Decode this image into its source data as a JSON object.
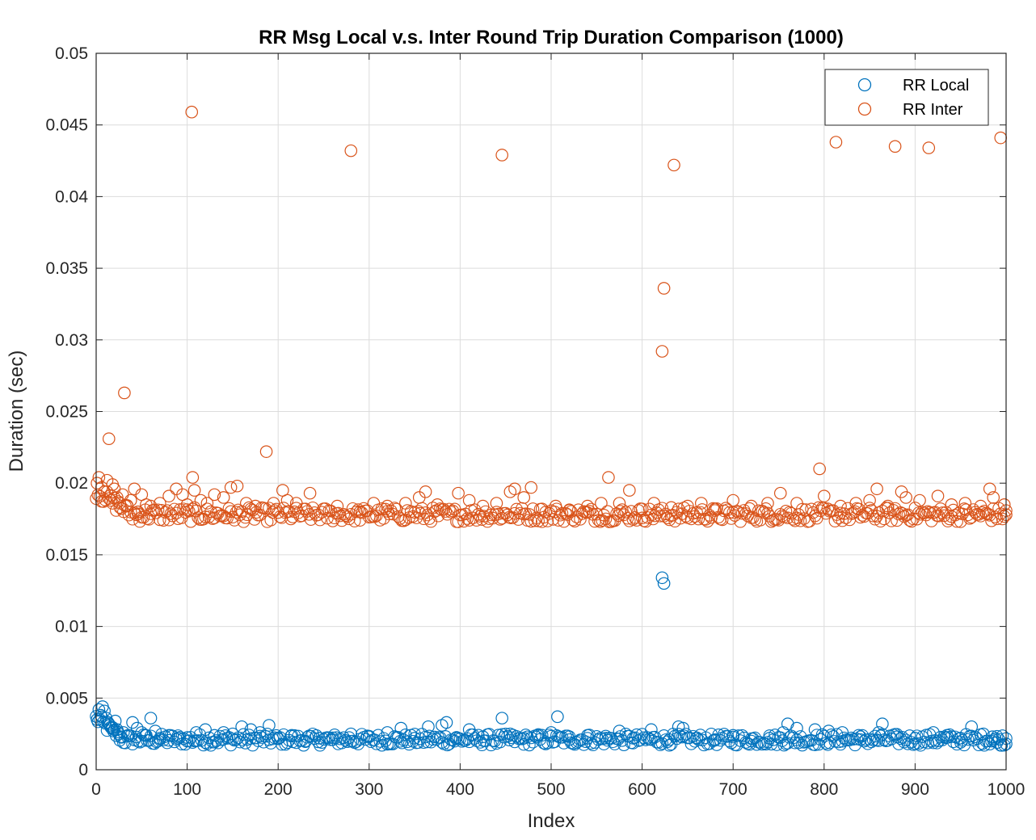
{
  "chart_data": {
    "type": "scatter",
    "title": "RR Msg Local v.s. Inter Round Trip Duration Comparison (1000)",
    "xlabel": "Index",
    "ylabel": "Duration (sec)",
    "xlim": [
      0,
      1000
    ],
    "ylim": [
      0,
      0.05
    ],
    "xticks": [
      "0",
      "100",
      "200",
      "300",
      "400",
      "500",
      "600",
      "700",
      "800",
      "900",
      "1000"
    ],
    "yticks": [
      "0",
      "0.005",
      "0.01",
      "0.015",
      "0.02",
      "0.025",
      "0.03",
      "0.035",
      "0.04",
      "0.045",
      "0.05"
    ],
    "grid": true,
    "legend_position": "top-right",
    "marker": "open-circle",
    "series": [
      {
        "name": "RR Local",
        "color": "#0072BD",
        "baseline": 0.0021,
        "points": [
          [
            1,
            0.0035
          ],
          [
            3,
            0.0042
          ],
          [
            5,
            0.0038
          ],
          [
            7,
            0.0044
          ],
          [
            9,
            0.0041
          ],
          [
            11,
            0.0036
          ],
          [
            13,
            0.0033
          ],
          [
            15,
            0.0031
          ],
          [
            17,
            0.0029
          ],
          [
            19,
            0.0027
          ],
          [
            21,
            0.0034
          ],
          [
            23,
            0.0028
          ],
          [
            25,
            0.0025
          ],
          [
            27,
            0.0023
          ],
          [
            30,
            0.0026
          ],
          [
            35,
            0.0024
          ],
          [
            40,
            0.0033
          ],
          [
            45,
            0.0029
          ],
          [
            50,
            0.0026
          ],
          [
            55,
            0.0024
          ],
          [
            60,
            0.0036
          ],
          [
            65,
            0.0027
          ],
          [
            70,
            0.0022
          ],
          [
            80,
            0.0024
          ],
          [
            90,
            0.0022
          ],
          [
            100,
            0.002
          ],
          [
            110,
            0.0026
          ],
          [
            120,
            0.0028
          ],
          [
            130,
            0.0024
          ],
          [
            140,
            0.0026
          ],
          [
            150,
            0.0025
          ],
          [
            160,
            0.003
          ],
          [
            170,
            0.0028
          ],
          [
            180,
            0.0026
          ],
          [
            190,
            0.0031
          ],
          [
            200,
            0.0022
          ],
          [
            215,
            0.0024
          ],
          [
            230,
            0.002
          ],
          [
            245,
            0.0022
          ],
          [
            260,
            0.0021
          ],
          [
            280,
            0.0025
          ],
          [
            300,
            0.0023
          ],
          [
            320,
            0.0026
          ],
          [
            335,
            0.0029
          ],
          [
            350,
            0.0022
          ],
          [
            365,
            0.003
          ],
          [
            380,
            0.0031
          ],
          [
            385,
            0.0033
          ],
          [
            395,
            0.0022
          ],
          [
            410,
            0.0028
          ],
          [
            425,
            0.0023
          ],
          [
            446,
            0.0036
          ],
          [
            455,
            0.0025
          ],
          [
            470,
            0.0022
          ],
          [
            485,
            0.0024
          ],
          [
            500,
            0.0026
          ],
          [
            507,
            0.0037
          ],
          [
            520,
            0.0021
          ],
          [
            540,
            0.0024
          ],
          [
            560,
            0.0022
          ],
          [
            575,
            0.0027
          ],
          [
            590,
            0.0022
          ],
          [
            610,
            0.0028
          ],
          [
            622,
            0.0134
          ],
          [
            624,
            0.013
          ],
          [
            630,
            0.0021
          ],
          [
            640,
            0.003
          ],
          [
            645,
            0.0029
          ],
          [
            660,
            0.0022
          ],
          [
            680,
            0.0021
          ],
          [
            700,
            0.0024
          ],
          [
            720,
            0.002
          ],
          [
            740,
            0.0022
          ],
          [
            755,
            0.0026
          ],
          [
            760,
            0.0032
          ],
          [
            770,
            0.0029
          ],
          [
            790,
            0.0028
          ],
          [
            805,
            0.0027
          ],
          [
            820,
            0.0026
          ],
          [
            840,
            0.0021
          ],
          [
            860,
            0.0026
          ],
          [
            864,
            0.0032
          ],
          [
            880,
            0.0023
          ],
          [
            900,
            0.0022
          ],
          [
            920,
            0.0026
          ],
          [
            935,
            0.0024
          ],
          [
            950,
            0.0022
          ],
          [
            962,
            0.003
          ],
          [
            975,
            0.0025
          ],
          [
            985,
            0.0023
          ],
          [
            990,
            0.0019
          ],
          [
            995,
            0.0017
          ],
          [
            1000,
            0.0018
          ]
        ]
      },
      {
        "name": "RR Inter",
        "color": "#D95319",
        "baseline": 0.0178,
        "points": [
          [
            1,
            0.02
          ],
          [
            3,
            0.0204
          ],
          [
            6,
            0.0197
          ],
          [
            9,
            0.0194
          ],
          [
            12,
            0.0202
          ],
          [
            14,
            0.0231
          ],
          [
            16,
            0.0188
          ],
          [
            18,
            0.0199
          ],
          [
            20,
            0.0196
          ],
          [
            23,
            0.019
          ],
          [
            26,
            0.0186
          ],
          [
            29,
            0.0192
          ],
          [
            31,
            0.0263
          ],
          [
            34,
            0.0184
          ],
          [
            38,
            0.0188
          ],
          [
            42,
            0.0196
          ],
          [
            46,
            0.018
          ],
          [
            50,
            0.0192
          ],
          [
            55,
            0.0185
          ],
          [
            60,
            0.0184
          ],
          [
            70,
            0.0186
          ],
          [
            80,
            0.0191
          ],
          [
            88,
            0.0196
          ],
          [
            95,
            0.0192
          ],
          [
            100,
            0.0185
          ],
          [
            105,
            0.0459
          ],
          [
            106,
            0.0204
          ],
          [
            108,
            0.0195
          ],
          [
            115,
            0.0188
          ],
          [
            122,
            0.0186
          ],
          [
            130,
            0.0192
          ],
          [
            140,
            0.019
          ],
          [
            148,
            0.0197
          ],
          [
            155,
            0.0198
          ],
          [
            165,
            0.0186
          ],
          [
            175,
            0.0184
          ],
          [
            187,
            0.0222
          ],
          [
            195,
            0.0186
          ],
          [
            205,
            0.0195
          ],
          [
            210,
            0.0188
          ],
          [
            220,
            0.0186
          ],
          [
            235,
            0.0193
          ],
          [
            250,
            0.0182
          ],
          [
            265,
            0.0184
          ],
          [
            280,
            0.0432
          ],
          [
            290,
            0.018
          ],
          [
            305,
            0.0186
          ],
          [
            320,
            0.0184
          ],
          [
            340,
            0.0186
          ],
          [
            355,
            0.019
          ],
          [
            362,
            0.0194
          ],
          [
            375,
            0.0185
          ],
          [
            398,
            0.0193
          ],
          [
            410,
            0.0188
          ],
          [
            425,
            0.0184
          ],
          [
            440,
            0.0186
          ],
          [
            446,
            0.0429
          ],
          [
            455,
            0.0194
          ],
          [
            460,
            0.0196
          ],
          [
            470,
            0.019
          ],
          [
            478,
            0.0197
          ],
          [
            490,
            0.0182
          ],
          [
            505,
            0.0184
          ],
          [
            520,
            0.0181
          ],
          [
            540,
            0.0184
          ],
          [
            555,
            0.0186
          ],
          [
            563,
            0.0204
          ],
          [
            575,
            0.0186
          ],
          [
            586,
            0.0195
          ],
          [
            600,
            0.0182
          ],
          [
            613,
            0.0186
          ],
          [
            622,
            0.0292
          ],
          [
            624,
            0.0336
          ],
          [
            632,
            0.0183
          ],
          [
            635,
            0.0422
          ],
          [
            650,
            0.0184
          ],
          [
            665,
            0.0186
          ],
          [
            680,
            0.0182
          ],
          [
            700,
            0.0188
          ],
          [
            720,
            0.0184
          ],
          [
            738,
            0.0186
          ],
          [
            752,
            0.0193
          ],
          [
            770,
            0.0186
          ],
          [
            795,
            0.021
          ],
          [
            800,
            0.0191
          ],
          [
            813,
            0.0438
          ],
          [
            818,
            0.0184
          ],
          [
            835,
            0.0186
          ],
          [
            850,
            0.0188
          ],
          [
            858,
            0.0196
          ],
          [
            870,
            0.0184
          ],
          [
            878,
            0.0435
          ],
          [
            885,
            0.0194
          ],
          [
            890,
            0.019
          ],
          [
            905,
            0.0188
          ],
          [
            915,
            0.0434
          ],
          [
            925,
            0.0191
          ],
          [
            940,
            0.0185
          ],
          [
            955,
            0.0186
          ],
          [
            972,
            0.0184
          ],
          [
            982,
            0.0196
          ],
          [
            986,
            0.019
          ],
          [
            994,
            0.0441
          ],
          [
            998,
            0.0185
          ],
          [
            1000,
            0.0178
          ]
        ]
      }
    ]
  }
}
